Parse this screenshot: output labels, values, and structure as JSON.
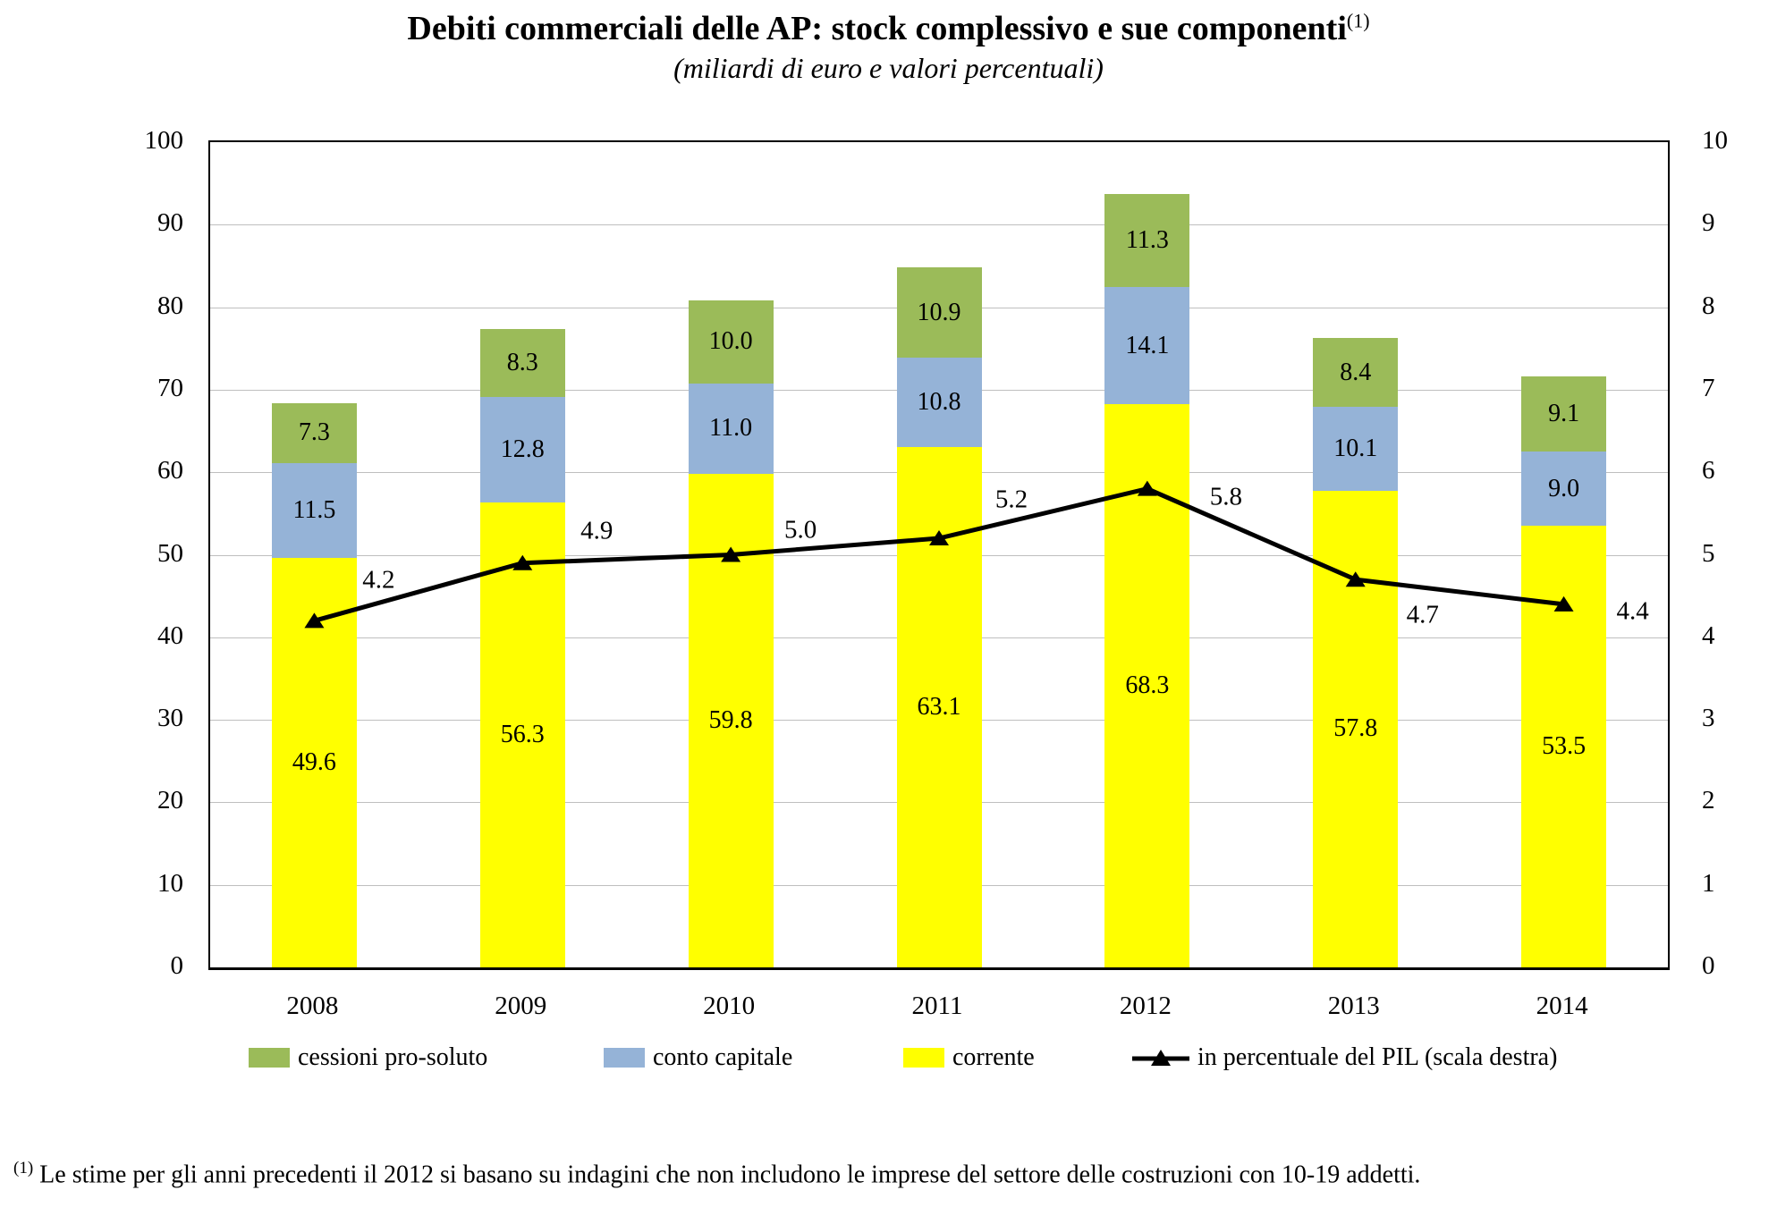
{
  "page": {
    "title": "Debiti commerciali delle AP: stock complessivo e sue componenti",
    "title_superscript": "(1)",
    "subtitle": "(miliardi di euro e valori percentuali)",
    "footnote_marker": "(1)",
    "footnote_text": "Le stime per gli anni precedenti il 2012 si basano su indagini che non includono le imprese del settore delle costruzioni con 10-19 addetti."
  },
  "chart_data": {
    "type": "bar",
    "subtype": "stacked-bars-with-line-overlay",
    "title": "Debiti commerciali delle AP: stock complessivo e sue componenti",
    "subtitle": "(miliardi di euro e valori percentuali)",
    "categories": [
      "2008",
      "2009",
      "2010",
      "2011",
      "2012",
      "2013",
      "2014"
    ],
    "series": [
      {
        "name": "corrente",
        "type": "bar",
        "stack_order": 1,
        "color": "#FFFF00",
        "values": [
          49.6,
          56.3,
          59.8,
          63.1,
          68.3,
          57.8,
          53.5
        ]
      },
      {
        "name": "conto capitale",
        "type": "bar",
        "stack_order": 2,
        "color": "#95B3D7",
        "values": [
          11.5,
          12.8,
          11.0,
          10.8,
          14.1,
          10.1,
          9.0
        ]
      },
      {
        "name": "cessioni pro-soluto",
        "type": "bar",
        "stack_order": 3,
        "color": "#9BBB59",
        "values": [
          7.3,
          8.3,
          10.0,
          10.9,
          11.3,
          8.4,
          9.1
        ]
      },
      {
        "name": "in percentuale del PIL (scala destra)",
        "type": "line",
        "axis": "right",
        "color": "#000000",
        "marker": "triangle",
        "values": [
          4.2,
          4.9,
          5.0,
          5.2,
          5.8,
          4.7,
          4.4
        ]
      }
    ],
    "left_axis": {
      "min": 0,
      "max": 100,
      "step": 10,
      "ticks": [
        0,
        10,
        20,
        30,
        40,
        50,
        60,
        70,
        80,
        90,
        100
      ]
    },
    "right_axis": {
      "min": 0,
      "max": 10,
      "step": 1,
      "ticks": [
        0,
        1,
        2,
        3,
        4,
        5,
        6,
        7,
        8,
        9,
        10
      ]
    },
    "grid": "horizontal",
    "gridline_color": "#BFBFBF",
    "axis_frame_color": "#000000",
    "data_labels": true,
    "data_label_decimals": 1,
    "legend_position": "bottom",
    "legend": [
      {
        "label": "cessioni pro-soluto",
        "swatch": "box",
        "color": "#9BBB59"
      },
      {
        "label": "conto capitale",
        "swatch": "box",
        "color": "#95B3D7"
      },
      {
        "label": "corrente",
        "swatch": "box",
        "color": "#FFFF00"
      },
      {
        "label": "in percentuale del PIL (scala destra)",
        "swatch": "line-triangle",
        "color": "#000000"
      }
    ]
  }
}
